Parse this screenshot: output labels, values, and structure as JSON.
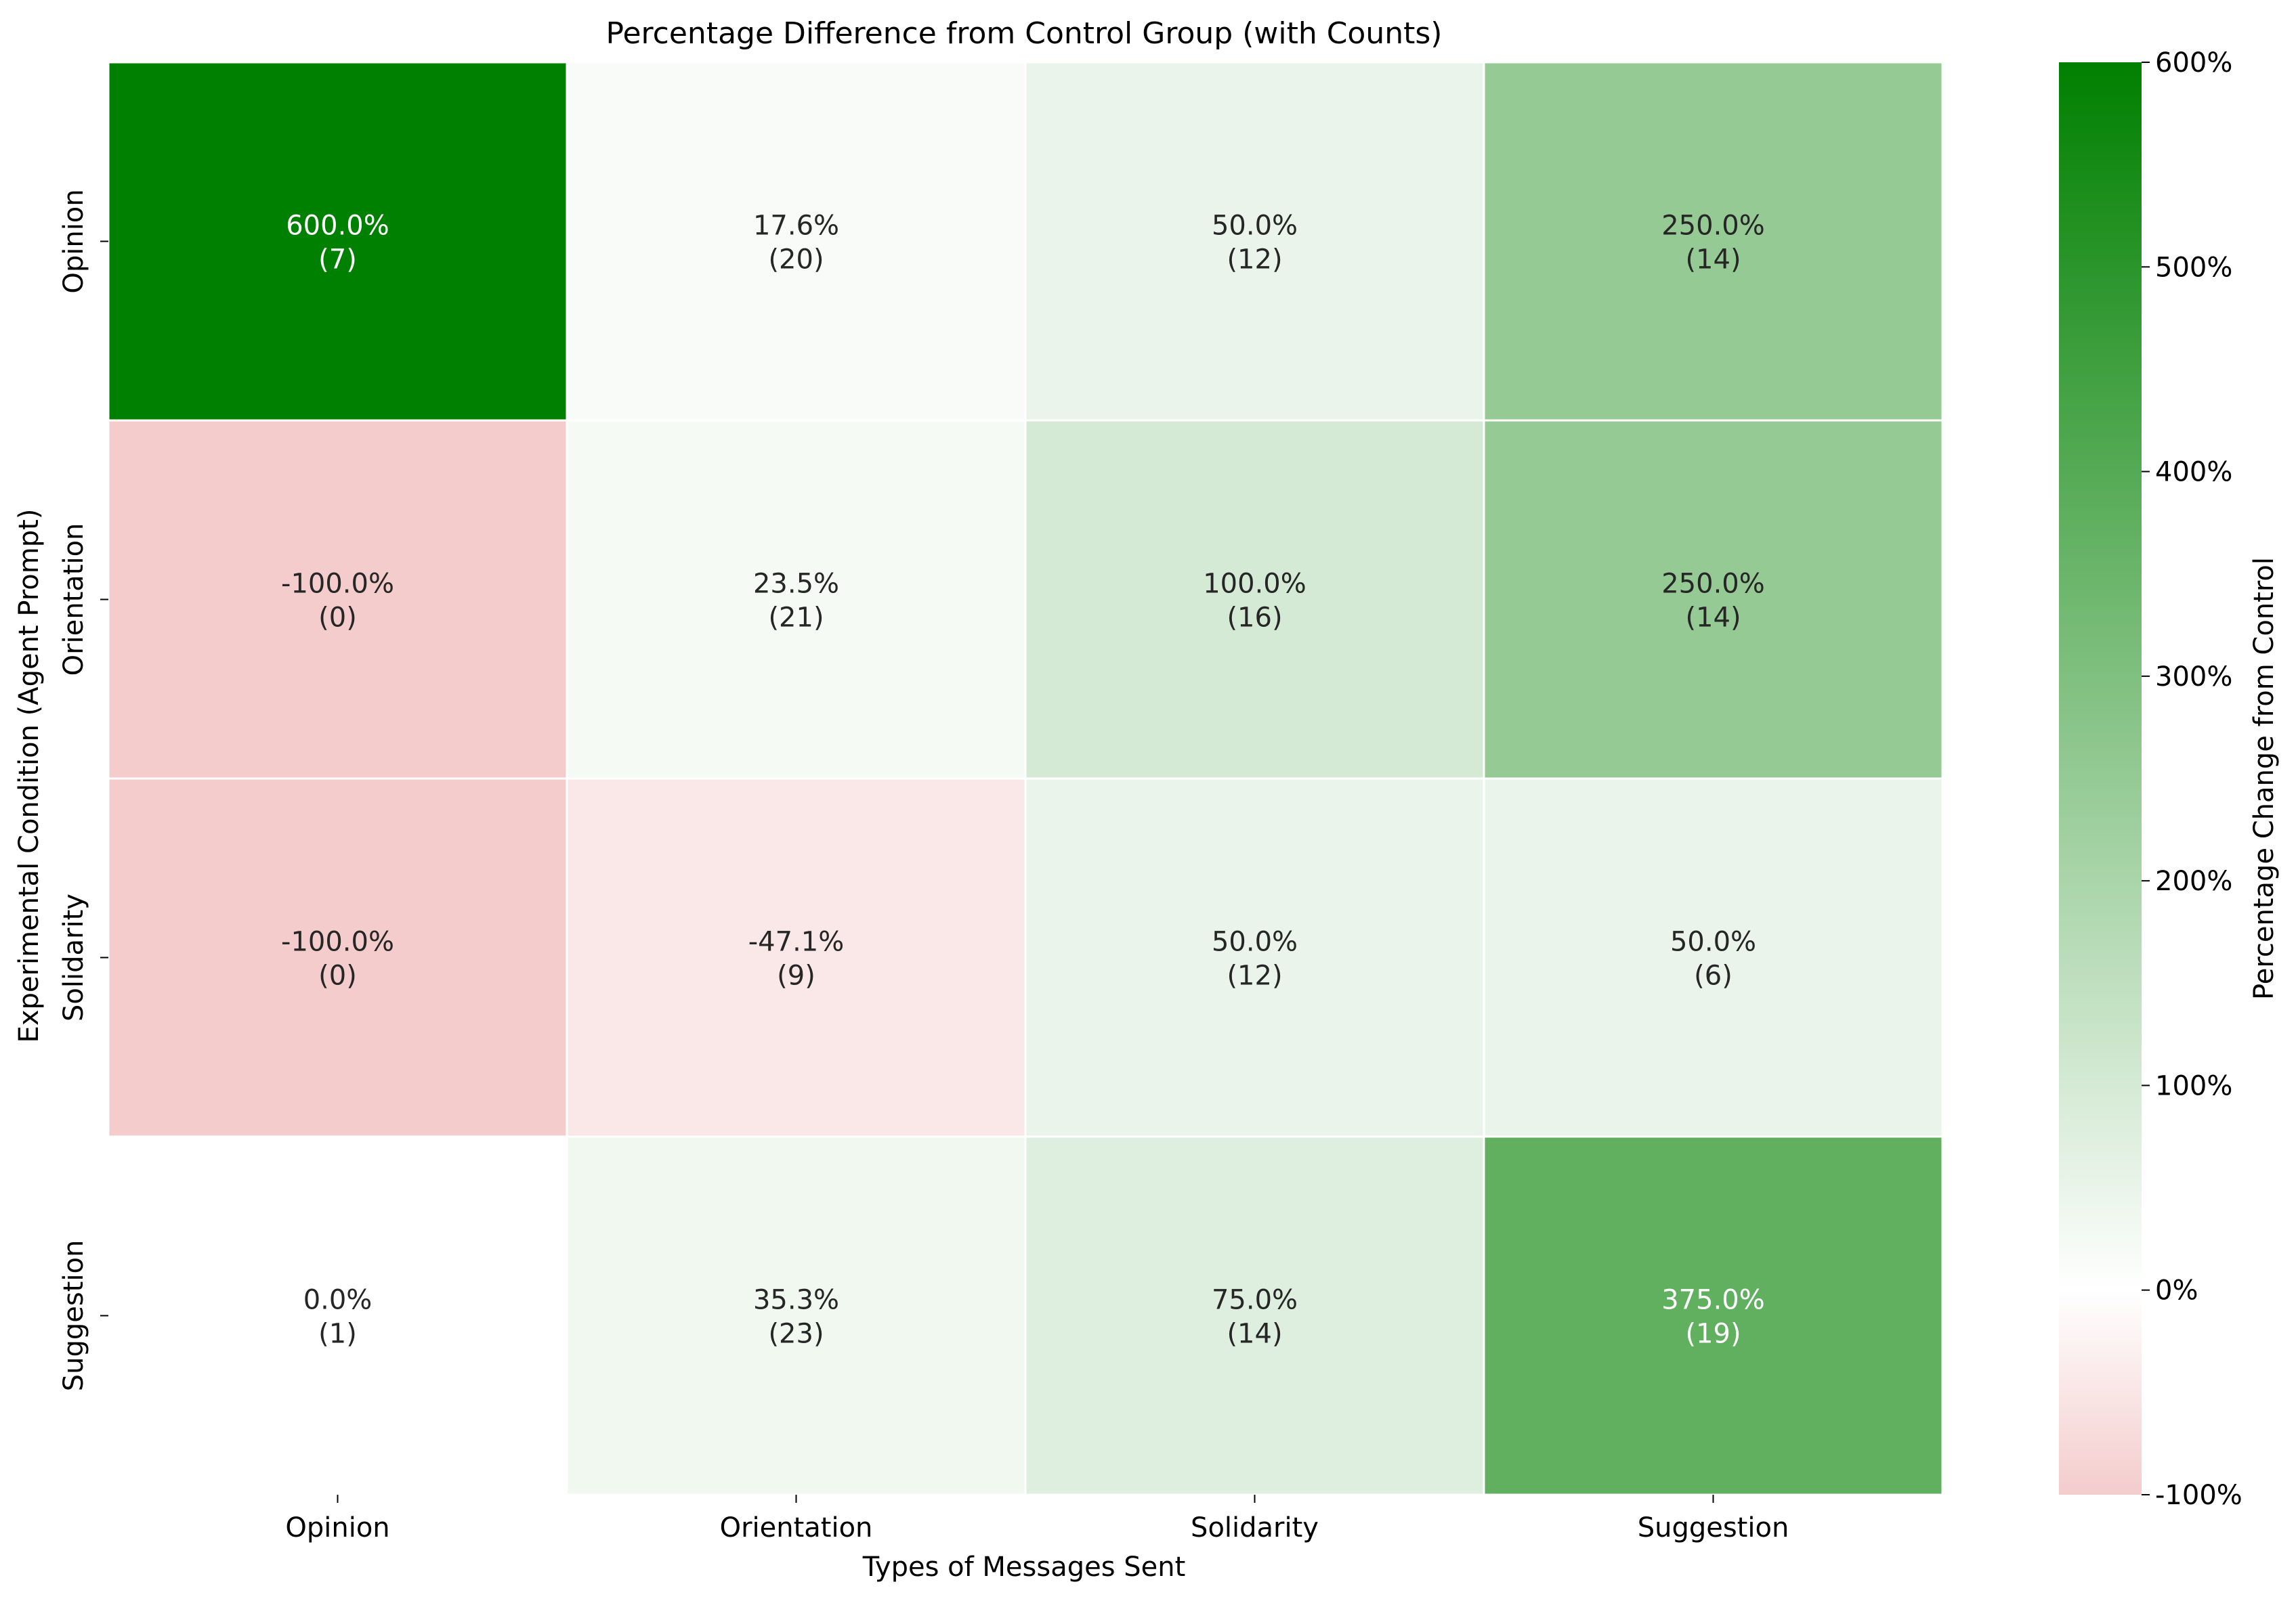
{
  "chart_data": {
    "type": "heatmap",
    "title": "Percentage Difference from Control Group (with Counts)",
    "xlabel": "Types of Messages Sent",
    "ylabel": "Experimental Condition (Agent Prompt)",
    "x_categories": [
      "Opinion",
      "Orientation",
      "Solidarity",
      "Suggestion"
    ],
    "y_categories": [
      "Opinion",
      "Orientation",
      "Solidarity",
      "Suggestion"
    ],
    "values": [
      [
        600.0,
        17.6,
        50.0,
        250.0
      ],
      [
        -100.0,
        23.5,
        100.0,
        250.0
      ],
      [
        -100.0,
        -47.1,
        50.0,
        50.0
      ],
      [
        0.0,
        35.3,
        75.0,
        375.0
      ]
    ],
    "cell_labels": [
      [
        "600.0%",
        "17.6%",
        "50.0%",
        "250.0%"
      ],
      [
        "-100.0%",
        "23.5%",
        "100.0%",
        "250.0%"
      ],
      [
        "-100.0%",
        "-47.1%",
        "50.0%",
        "50.0%"
      ],
      [
        "0.0%",
        "35.3%",
        "75.0%",
        "375.0%"
      ]
    ],
    "counts": [
      [
        7,
        20,
        12,
        14
      ],
      [
        0,
        21,
        16,
        14
      ],
      [
        0,
        9,
        12,
        6
      ],
      [
        1,
        23,
        14,
        19
      ]
    ],
    "count_labels": [
      [
        "(7)",
        "(20)",
        "(12)",
        "(14)"
      ],
      [
        "(0)",
        "(21)",
        "(16)",
        "(14)"
      ],
      [
        "(0)",
        "(9)",
        "(12)",
        "(6)"
      ],
      [
        "(1)",
        "(23)",
        "(14)",
        "(19)"
      ]
    ],
    "colorbar": {
      "label": "Percentage Change from Control",
      "range": [
        -100,
        600
      ],
      "ticks": [
        600,
        500,
        400,
        300,
        200,
        100,
        0,
        -100
      ],
      "tick_labels": [
        "600%",
        "500%",
        "400%",
        "300%",
        "200%",
        "100%",
        "0%",
        "-100%"
      ],
      "color_low": "#f4cccc",
      "color_mid": "#ffffff",
      "color_high": "#008000"
    },
    "grid": false
  }
}
